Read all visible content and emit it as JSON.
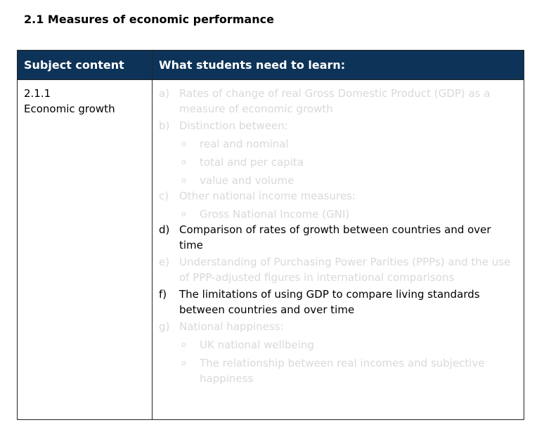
{
  "heading": "2.1 Measures of economic performance",
  "table": {
    "headers": [
      "Subject content",
      "What students need to learn:"
    ],
    "rows": [
      {
        "code": "2.1.1",
        "topic": "Economic growth",
        "items": [
          {
            "label": "a)",
            "text": "Rates of change of real Gross Domestic Product (GDP) as a measure of economic growth",
            "faded": true,
            "subitems": []
          },
          {
            "label": "b)",
            "text": "Distinction between:",
            "faded": true,
            "subitems": [
              {
                "marker": "o",
                "text": "real and nominal"
              },
              {
                "marker": "o",
                "text": "total and per capita"
              },
              {
                "marker": "o",
                "text": "value and volume"
              }
            ]
          },
          {
            "label": "c)",
            "text": "Other national income measures:",
            "faded": true,
            "subitems": [
              {
                "marker": "o",
                "text": "Gross National Income (GNI)"
              }
            ]
          },
          {
            "label": "d)",
            "text": "Comparison of rates of growth between countries and over time",
            "faded": false,
            "subitems": []
          },
          {
            "label": "e)",
            "text": "Understanding of Purchasing Power Parities (PPPs) and the use of PPP-adjusted figures in international comparisons",
            "faded": true,
            "subitems": []
          },
          {
            "label": "f)",
            "text": "The limitations of using GDP to compare living standards between countries and over time",
            "faded": false,
            "subitems": []
          },
          {
            "label": "g)",
            "text": "National happiness:",
            "faded": true,
            "subitems": [
              {
                "marker": "o",
                "text": "UK national wellbeing"
              },
              {
                "marker": "o",
                "text": "The relationship between real incomes and subjective happiness"
              }
            ]
          }
        ]
      }
    ]
  }
}
